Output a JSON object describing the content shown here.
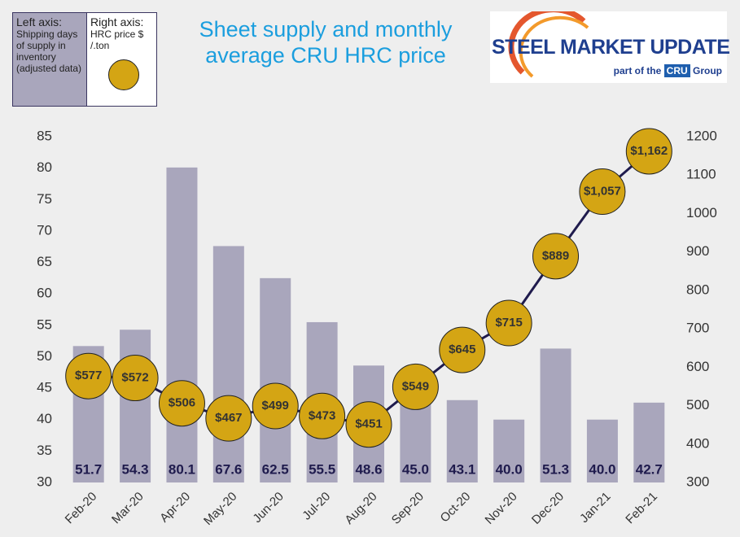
{
  "chart_data": {
    "type": "bar_line",
    "title": "Sheet supply and monthly average CRU HRC price",
    "legend_left": {
      "heading": "Left axis:",
      "text": "Shipping days of supply in inventory (adjusted data)"
    },
    "legend_right": {
      "heading": "Right axis:",
      "text": "HRC price $ /.ton"
    },
    "logo": {
      "name": "STEEL MARKET UPDATE",
      "tagline": "part of the",
      "badge": "CRU",
      "suffix": "Group"
    },
    "categories": [
      "Feb-20",
      "Mar-20",
      "Apr-20",
      "May-20",
      "Jun-20",
      "Jul-20",
      "Aug-20",
      "Sep-20",
      "Oct-20",
      "Nov-20",
      "Dec-20",
      "Jan-21",
      "Feb-21"
    ],
    "series": [
      {
        "name": "Shipping days of supply",
        "type": "bar",
        "color": "#a9a6bc",
        "values": [
          51.7,
          54.3,
          80.1,
          67.6,
          62.5,
          55.5,
          48.6,
          45.0,
          43.1,
          40.0,
          51.3,
          40.0,
          42.7
        ],
        "value_labels": [
          "51.7",
          "54.3",
          "80.1",
          "67.6",
          "62.5",
          "55.5",
          "48.6",
          "45.0",
          "43.1",
          "40.0",
          "51.3",
          "40.0",
          "42.7"
        ]
      },
      {
        "name": "HRC price",
        "type": "line",
        "axis": "y2",
        "color": "#1f1b4d",
        "marker_color": "#d4a514",
        "values": [
          577,
          572,
          506,
          467,
          499,
          473,
          451,
          549,
          645,
          715,
          889,
          1057,
          1162
        ],
        "value_labels": [
          "$577",
          "$572",
          "$506",
          "$467",
          "$499",
          "$473",
          "$451",
          "$549",
          "$645",
          "$715",
          "$889",
          "$1,057",
          "$1,162"
        ]
      }
    ],
    "ylim": [
      30,
      85
    ],
    "yticks": [
      30,
      35,
      40,
      45,
      50,
      55,
      60,
      65,
      70,
      75,
      80,
      85
    ],
    "y2lim": [
      300,
      1200
    ],
    "y2ticks": [
      300,
      400,
      500,
      600,
      700,
      800,
      900,
      1000,
      1100,
      1200
    ],
    "grid": false
  }
}
